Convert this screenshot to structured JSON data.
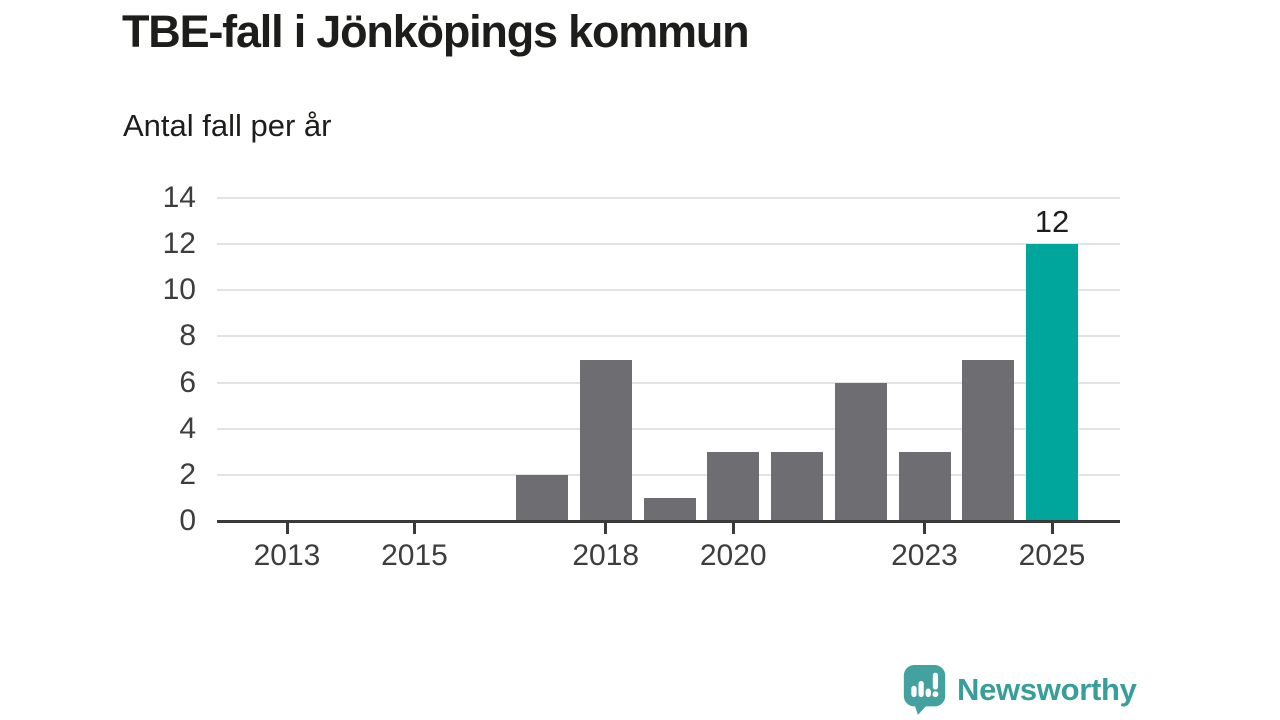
{
  "header": {
    "title": "TBE-fall i Jönköpings kommun",
    "subtitle": "Antal fall per år"
  },
  "chart_data": {
    "type": "bar",
    "title": "TBE-fall i Jönköpings kommun",
    "subtitle": "Antal fall per år",
    "categories": [
      2013,
      2014,
      2015,
      2016,
      2017,
      2018,
      2019,
      2020,
      2021,
      2022,
      2023,
      2024,
      2025
    ],
    "values": [
      0,
      0,
      0,
      0,
      2,
      7,
      1,
      3,
      3,
      6,
      3,
      7,
      12
    ],
    "xlabel": "",
    "ylabel": "Antal fall per år",
    "ylim": [
      0,
      14
    ],
    "yticks": [
      0,
      2,
      4,
      6,
      8,
      10,
      12,
      14
    ],
    "xticks": [
      2013,
      2015,
      2018,
      2020,
      2023,
      2025
    ],
    "grid": true,
    "legend": "none",
    "highlight_category": 2025,
    "data_labels": [
      {
        "category": 2025,
        "label": "12"
      }
    ],
    "colors": {
      "bar": "#6d6d72",
      "highlight": "#00a69c",
      "gridline": "#e3e3e3",
      "axis": "#3a3a3a",
      "tick_label": "#3d3d3d",
      "title": "#1d1d1b",
      "value_label": "#1d1d1b"
    }
  },
  "branding": {
    "logo_text": "Newsworthy",
    "logo_icon": "speech-bubble-bar-chart-icon",
    "logo_text_color": "#379e99",
    "logo_icon_color": "#43a1a0"
  }
}
